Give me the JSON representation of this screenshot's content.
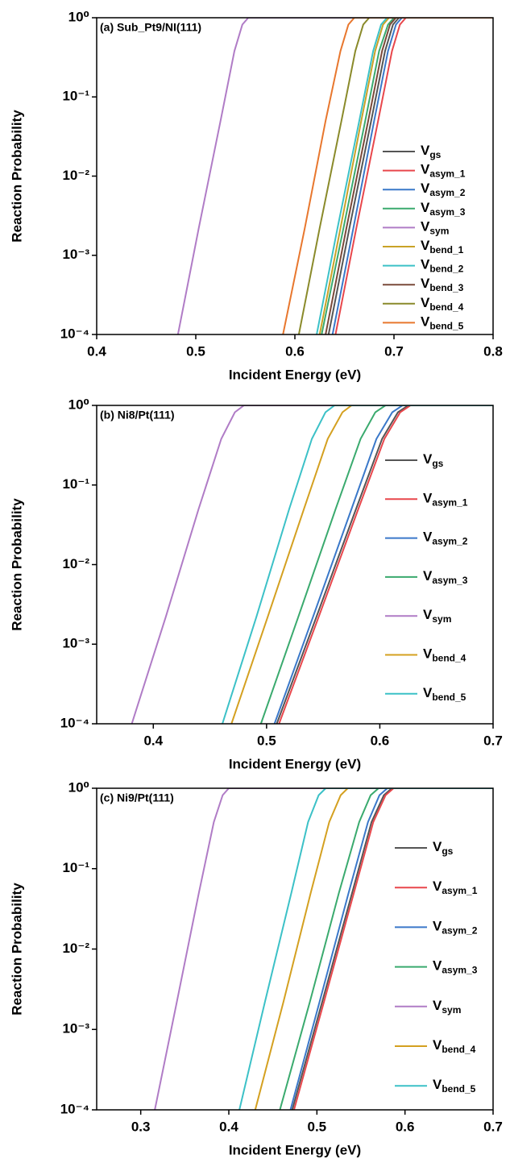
{
  "chart_data": [
    {
      "type": "line",
      "annotation": "(a) Sub_Pt9/NI(111)",
      "x_label": "Incident Energy (eV)",
      "y_label": "Reaction Probability",
      "log_y": true,
      "xlim": [
        0.4,
        0.8
      ],
      "xticks": [
        0.4,
        0.5,
        0.6,
        0.7,
        0.8
      ],
      "ylim": [
        0.0001,
        1
      ],
      "yticks": [
        {
          "value": 1,
          "label": "10⁰"
        },
        {
          "value": 0.1,
          "label": "10⁻¹"
        },
        {
          "value": 0.01,
          "label": "10⁻²"
        },
        {
          "value": 0.001,
          "label": "10⁻³"
        },
        {
          "value": 0.0001,
          "label": "10⁻⁴"
        }
      ],
      "series": [
        {
          "name": "V_gs",
          "color": "#555555",
          "x": [
            0.634,
            0.655,
            0.677,
            0.691,
            0.699,
            0.705,
            0.8
          ],
          "values": [
            0.0001,
            0.0022,
            0.05,
            0.38,
            0.82,
            1,
            1
          ]
        },
        {
          "name": "V_asym_1",
          "color": "#e8474c",
          "x": [
            0.641,
            0.662,
            0.684,
            0.698,
            0.706,
            0.712,
            0.8
          ],
          "values": [
            0.0001,
            0.0022,
            0.05,
            0.38,
            0.82,
            1,
            1
          ]
        },
        {
          "name": "V_asym_2",
          "color": "#3a78c9",
          "x": [
            0.638,
            0.659,
            0.68,
            0.694,
            0.702,
            0.708,
            0.8
          ],
          "values": [
            0.0001,
            0.0022,
            0.05,
            0.38,
            0.82,
            1,
            1
          ]
        },
        {
          "name": "V_asym_3",
          "color": "#3aaa6e",
          "x": [
            0.627,
            0.649,
            0.671,
            0.685,
            0.694,
            0.7,
            0.8
          ],
          "values": [
            0.0001,
            0.0022,
            0.05,
            0.38,
            0.82,
            1,
            1
          ]
        },
        {
          "name": "V_sym",
          "color": "#b07cc6",
          "x": [
            0.482,
            0.503,
            0.525,
            0.539,
            0.547,
            0.553,
            0.8
          ],
          "values": [
            0.0001,
            0.0022,
            0.05,
            0.38,
            0.82,
            1,
            1
          ]
        },
        {
          "name": "V_bend_1",
          "color": "#c9a227",
          "x": [
            0.625,
            0.646,
            0.667,
            0.681,
            0.689,
            0.695,
            0.8
          ],
          "values": [
            0.0001,
            0.0022,
            0.05,
            0.38,
            0.82,
            1,
            1
          ]
        },
        {
          "name": "V_bend_2",
          "color": "#3cc1c7",
          "x": [
            0.622,
            0.643,
            0.665,
            0.679,
            0.687,
            0.693,
            0.8
          ],
          "values": [
            0.0001,
            0.0022,
            0.05,
            0.38,
            0.82,
            1,
            1
          ]
        },
        {
          "name": "V_bend_3",
          "color": "#7a4a3a",
          "x": [
            0.631,
            0.652,
            0.674,
            0.688,
            0.696,
            0.702,
            0.8
          ],
          "values": [
            0.0001,
            0.0022,
            0.05,
            0.38,
            0.82,
            1,
            1
          ]
        },
        {
          "name": "V_bend_4",
          "color": "#8a8a2a",
          "x": [
            0.604,
            0.625,
            0.647,
            0.661,
            0.669,
            0.675,
            0.8
          ],
          "values": [
            0.0001,
            0.0022,
            0.05,
            0.38,
            0.82,
            1,
            1
          ]
        },
        {
          "name": "V_bend_5",
          "color": "#e8772e",
          "x": [
            0.588,
            0.61,
            0.631,
            0.646,
            0.654,
            0.66,
            0.8
          ],
          "values": [
            0.0001,
            0.0022,
            0.05,
            0.38,
            0.82,
            1,
            1
          ]
        }
      ]
    },
    {
      "type": "line",
      "annotation": "(b) Ni8/Pt(111)",
      "x_label": "Incident Energy (eV)",
      "y_label": "Reaction Probability",
      "log_y": true,
      "xlim": [
        0.35,
        0.7
      ],
      "xticks": [
        0.4,
        0.5,
        0.6,
        0.7
      ],
      "ylim": [
        0.0001,
        1
      ],
      "yticks": [
        {
          "value": 1,
          "label": "10⁰"
        },
        {
          "value": 0.1,
          "label": "10⁻¹"
        },
        {
          "value": 0.01,
          "label": "10⁻²"
        },
        {
          "value": 0.001,
          "label": "10⁻³"
        },
        {
          "value": 0.0001,
          "label": "10⁻⁴"
        }
      ],
      "series": [
        {
          "name": "V_gs",
          "color": "#555555",
          "x": [
            0.509,
            0.544,
            0.579,
            0.602,
            0.616,
            0.625,
            0.7
          ],
          "values": [
            0.0001,
            0.0022,
            0.05,
            0.38,
            0.82,
            1,
            1
          ]
        },
        {
          "name": "V_asym_1",
          "color": "#e8474c",
          "x": [
            0.511,
            0.546,
            0.581,
            0.604,
            0.618,
            0.627,
            0.7
          ],
          "values": [
            0.0001,
            0.0022,
            0.05,
            0.38,
            0.82,
            1,
            1
          ]
        },
        {
          "name": "V_asym_2",
          "color": "#3a78c9",
          "x": [
            0.507,
            0.541,
            0.575,
            0.597,
            0.611,
            0.62,
            0.7
          ],
          "values": [
            0.0001,
            0.0022,
            0.05,
            0.38,
            0.82,
            1,
            1
          ]
        },
        {
          "name": "V_asym_3",
          "color": "#3aaa6e",
          "x": [
            0.495,
            0.528,
            0.561,
            0.583,
            0.596,
            0.605,
            0.7
          ],
          "values": [
            0.0001,
            0.0022,
            0.05,
            0.38,
            0.82,
            1,
            1
          ]
        },
        {
          "name": "V_sym",
          "color": "#b07cc6",
          "x": [
            0.381,
            0.411,
            0.44,
            0.46,
            0.472,
            0.48,
            0.7
          ],
          "values": [
            0.0001,
            0.0022,
            0.05,
            0.38,
            0.82,
            1,
            1
          ]
        },
        {
          "name": "V_bend_4",
          "color": "#d4a020",
          "x": [
            0.469,
            0.501,
            0.533,
            0.554,
            0.567,
            0.575,
            0.7
          ],
          "values": [
            0.0001,
            0.0022,
            0.05,
            0.38,
            0.82,
            1,
            1
          ]
        },
        {
          "name": "V_bend_5",
          "color": "#3cc1c7",
          "x": [
            0.461,
            0.491,
            0.52,
            0.54,
            0.552,
            0.56,
            0.7
          ],
          "values": [
            0.0001,
            0.0022,
            0.05,
            0.38,
            0.82,
            1,
            1
          ]
        }
      ]
    },
    {
      "type": "line",
      "annotation": "(c) Ni9/Pt(111)",
      "x_label": "Incident Energy (eV)",
      "y_label": "Reaction Probability",
      "log_y": true,
      "xlim": [
        0.25,
        0.7
      ],
      "xticks": [
        0.3,
        0.4,
        0.5,
        0.6,
        0.7
      ],
      "ylim": [
        0.0001,
        1
      ],
      "yticks": [
        {
          "value": 1,
          "label": "10⁰"
        },
        {
          "value": 0.1,
          "label": "10⁻¹"
        },
        {
          "value": 0.01,
          "label": "10⁻²"
        },
        {
          "value": 0.001,
          "label": "10⁻³"
        },
        {
          "value": 0.0001,
          "label": "10⁻⁴"
        }
      ],
      "series": [
        {
          "name": "V_gs",
          "color": "#555555",
          "x": [
            0.472,
            0.506,
            0.54,
            0.562,
            0.576,
            0.585,
            0.7
          ],
          "values": [
            0.0001,
            0.0022,
            0.05,
            0.38,
            0.82,
            1,
            1
          ]
        },
        {
          "name": "V_asym_1",
          "color": "#e8474c",
          "x": [
            0.474,
            0.508,
            0.542,
            0.564,
            0.578,
            0.587,
            0.7
          ],
          "values": [
            0.0001,
            0.0022,
            0.05,
            0.38,
            0.82,
            1,
            1
          ]
        },
        {
          "name": "V_asym_2",
          "color": "#3a78c9",
          "x": [
            0.47,
            0.503,
            0.536,
            0.558,
            0.571,
            0.58,
            0.7
          ],
          "values": [
            0.0001,
            0.0022,
            0.05,
            0.38,
            0.82,
            1,
            1
          ]
        },
        {
          "name": "V_asym_3",
          "color": "#3aaa6e",
          "x": [
            0.458,
            0.492,
            0.525,
            0.548,
            0.561,
            0.57,
            0.7
          ],
          "values": [
            0.0001,
            0.0022,
            0.05,
            0.38,
            0.82,
            1,
            1
          ]
        },
        {
          "name": "V_sym",
          "color": "#b07cc6",
          "x": [
            0.316,
            0.341,
            0.366,
            0.383,
            0.393,
            0.4,
            0.7
          ],
          "values": [
            0.0001,
            0.0022,
            0.05,
            0.38,
            0.82,
            1,
            1
          ]
        },
        {
          "name": "V_bend_4",
          "color": "#d4a020",
          "x": [
            0.43,
            0.462,
            0.493,
            0.514,
            0.527,
            0.535,
            0.7
          ],
          "values": [
            0.0001,
            0.0022,
            0.05,
            0.38,
            0.82,
            1,
            1
          ]
        },
        {
          "name": "V_bend_5",
          "color": "#3cc1c7",
          "x": [
            0.412,
            0.441,
            0.471,
            0.49,
            0.502,
            0.51,
            0.7
          ],
          "values": [
            0.0001,
            0.0022,
            0.05,
            0.38,
            0.82,
            1,
            1
          ]
        }
      ]
    }
  ]
}
